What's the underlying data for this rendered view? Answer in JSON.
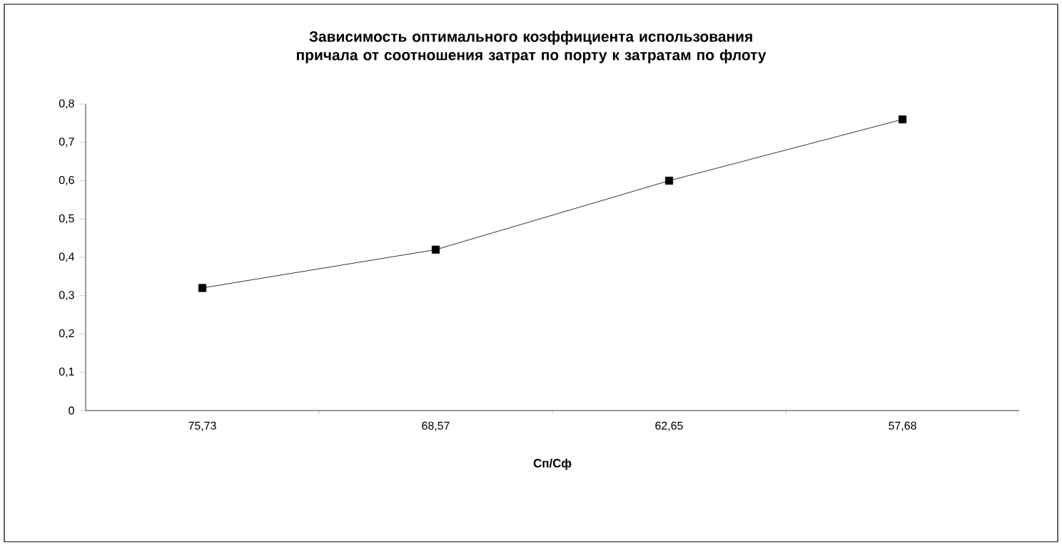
{
  "chart_data": {
    "type": "line",
    "title": "Зависимость оптимального коэффициента использования причала от соотношения затрат по порту к затратам по флоту",
    "xlabel": "Сп/Сф",
    "categories": [
      "75,73",
      "68,57",
      "62,65",
      "57,68"
    ],
    "series": [
      {
        "color": "#000000",
        "values": [
          0.32,
          0.42,
          0.6,
          0.76
        ]
      }
    ],
    "ylim": [
      0,
      0.8
    ],
    "yticks": [
      {
        "value": 0,
        "label": "0"
      },
      {
        "value": 0.1,
        "label": "0,1"
      },
      {
        "value": 0.2,
        "label": "0,2"
      },
      {
        "value": 0.3,
        "label": "0,3"
      },
      {
        "value": 0.4,
        "label": "0,4"
      },
      {
        "value": 0.5,
        "label": "0,5"
      },
      {
        "value": 0.6,
        "label": "0,6"
      },
      {
        "value": 0.7,
        "label": "0,7"
      },
      {
        "value": 0.8,
        "label": "0,8"
      }
    ],
    "marker": "square",
    "line_style": "solid"
  }
}
